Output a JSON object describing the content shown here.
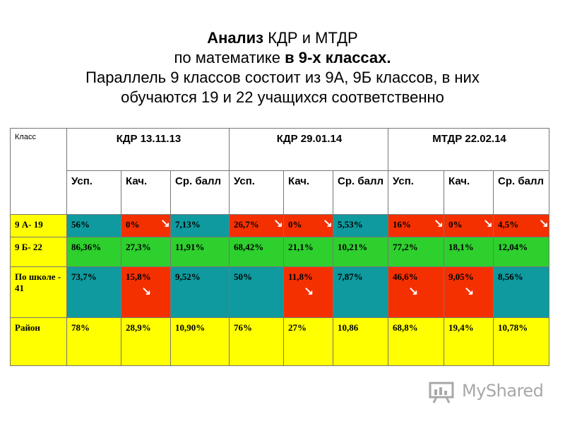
{
  "title": {
    "line1_bold": "Анализ",
    "line1_rest": " КДР и МТДР",
    "line2_start": "по математике ",
    "line2_bold": "в 9-х классах.",
    "line3": "Параллель 9 классов состоит из 9А, 9Б классов, в них",
    "line4": "обучаются 19 и 22  учащихся соответственно"
  },
  "table": {
    "klass_header": "Класс",
    "groups": [
      "КДР  13.11.13",
      "КДР 29.01.14",
      "МТДР 22.02.14"
    ],
    "subheaders": [
      "Усп.",
      "Кач.",
      "Ср. балл",
      "Усп.",
      "Кач.",
      "Ср. балл",
      "Усп.",
      "Кач.",
      "Ср. балл"
    ],
    "rows": [
      {
        "label": "9 А-  19",
        "cells": [
          {
            "v": "56%"
          },
          {
            "v": "0%"
          },
          {
            "v": "7,13%"
          },
          {
            "v": "26,7%"
          },
          {
            "v": "0%"
          },
          {
            "v": "5,53%"
          },
          {
            "v": "16%"
          },
          {
            "v": "0%"
          },
          {
            "v": "4,5%"
          }
        ]
      },
      {
        "label": "9 Б-  22",
        "cells": [
          {
            "v": "86,36%"
          },
          {
            "v": "27,3%"
          },
          {
            "v": "11,91%"
          },
          {
            "v": "68,42%"
          },
          {
            "v": "21,1%"
          },
          {
            "v": "10,21%"
          },
          {
            "v": "77,2%"
          },
          {
            "v": "18,1%"
          },
          {
            "v": "12,04%"
          }
        ]
      },
      {
        "label": "По школе - 41",
        "cells": [
          {
            "v": "73,7%"
          },
          {
            "v": "15,8%"
          },
          {
            "v": "9,52%"
          },
          {
            "v": "50%"
          },
          {
            "v": "11,8%"
          },
          {
            "v": "7,87%"
          },
          {
            "v": "46,6%"
          },
          {
            "v": "9,05%"
          },
          {
            "v": "8,56%"
          }
        ]
      },
      {
        "label": "Район",
        "cells": [
          {
            "v": "78%"
          },
          {
            "v": "28,9%"
          },
          {
            "v": "10,90%"
          },
          {
            "v": "76%"
          },
          {
            "v": "27%"
          },
          {
            "v": "10,86"
          },
          {
            "v": "68,8%"
          },
          {
            "v": "19,4%"
          },
          {
            "v": "10,78%"
          }
        ]
      }
    ]
  },
  "colors": {
    "yellow": "#ffff00",
    "teal": "#0e9a9e",
    "red": "#f53000",
    "green": "#2ed02e"
  },
  "icons": {
    "decrease_arrow": "down-right-arrow-icon",
    "logo_icon": "presentation-board-icon"
  },
  "watermark": {
    "text": "MyShared"
  }
}
